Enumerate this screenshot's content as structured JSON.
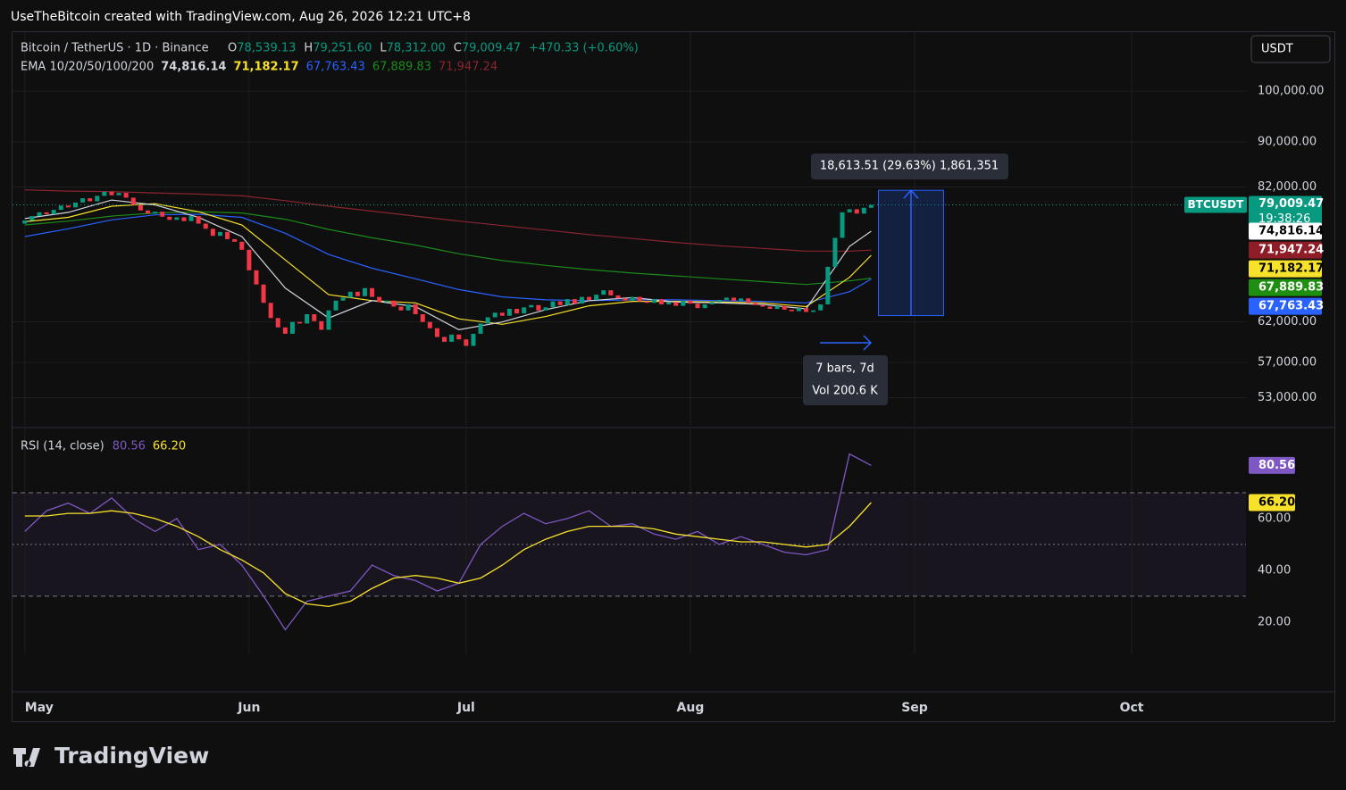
{
  "header": {
    "text": "UseTheBitcoin created with TradingView.com, Aug 26, 2026 12:21 UTC+8"
  },
  "footer": {
    "logo": "TradingView"
  },
  "chart_data": [
    {
      "type": "candlestick",
      "symbol": "Bitcoin / TetherUS · 1D · Binance",
      "ohlc_legend": [
        {
          "key": "O",
          "value": "78,539.13"
        },
        {
          "key": "H",
          "value": "79,251.60"
        },
        {
          "key": "L",
          "value": "78,312.00"
        },
        {
          "key": "C",
          "value": "79,009.47"
        }
      ],
      "change": "+470.33 (+0.60%)",
      "currency": "USDT",
      "indicator": "EMA 10/20/50/100/200",
      "log_scale": true,
      "grid": true,
      "up_color": "#089981",
      "down_color": "#f23645",
      "xlim": [
        -1.7,
        168.8
      ],
      "xticks": [
        {
          "value": 0,
          "label": "May"
        },
        {
          "value": 31,
          "label": "Jun"
        },
        {
          "value": 61,
          "label": "Jul"
        },
        {
          "value": 92,
          "label": "Aug"
        },
        {
          "value": 123,
          "label": "Sep"
        },
        {
          "value": 153,
          "label": "Oct"
        }
      ],
      "ylim": [
        50000,
        113000
      ],
      "yticks": [
        {
          "value": 53000,
          "label": "53,000.00"
        },
        {
          "value": 57000,
          "label": "57,000.00"
        },
        {
          "value": 62000,
          "label": "62,000.00"
        },
        {
          "value": 82000,
          "label": "82,000.00"
        },
        {
          "value": 90000,
          "label": "90,000.00"
        },
        {
          "value": 100000,
          "label": "100,000.00"
        }
      ],
      "x": [
        0,
        1,
        2,
        3,
        4,
        5,
        6,
        7,
        8,
        9,
        10,
        11,
        12,
        13,
        14,
        15,
        16,
        17,
        18,
        19,
        20,
        21,
        22,
        23,
        24,
        25,
        26,
        27,
        28,
        29,
        30,
        31,
        32,
        33,
        34,
        35,
        36,
        37,
        38,
        39,
        40,
        41,
        42,
        43,
        44,
        45,
        46,
        47,
        48,
        49,
        50,
        51,
        52,
        53,
        54,
        55,
        56,
        57,
        58,
        59,
        60,
        61,
        62,
        63,
        64,
        65,
        66,
        67,
        68,
        69,
        70,
        71,
        72,
        73,
        74,
        75,
        76,
        77,
        78,
        79,
        80,
        81,
        82,
        83,
        84,
        85,
        86,
        87,
        88,
        89,
        90,
        91,
        92,
        93,
        94,
        95,
        96,
        97,
        98,
        99,
        100,
        101,
        102,
        103,
        104,
        105,
        106,
        107,
        108,
        109,
        110,
        111,
        112,
        113,
        114,
        115,
        116,
        117
      ],
      "open": [
        76000,
        76500,
        77200,
        77800,
        77500,
        78200,
        78900,
        78600,
        79400,
        80100,
        79600,
        80500,
        81200,
        80600,
        81000,
        80200,
        79000,
        78100,
        77600,
        77900,
        77100,
        76600,
        77000,
        76400,
        77200,
        76000,
        75200,
        74100,
        74700,
        73600,
        73200,
        72000,
        69000,
        67000,
        64500,
        62500,
        61300,
        60500,
        62000,
        61800,
        63000,
        62100,
        61000,
        63500,
        64800,
        65200,
        66000,
        65400,
        66500,
        65300,
        64600,
        64800,
        64000,
        63500,
        64300,
        63000,
        62000,
        61200,
        60100,
        59500,
        60400,
        59800,
        59000,
        60500,
        61800,
        62600,
        63200,
        62800,
        63700,
        63100,
        63900,
        64200,
        63500,
        63900,
        64700,
        64200,
        65000,
        64400,
        65300,
        64900,
        65600,
        66200,
        65500,
        65100,
        64800,
        65300,
        64700,
        64500,
        65000,
        64300,
        64600,
        64100,
        64800,
        64400,
        63800,
        64300,
        64600,
        64900,
        65200,
        64800,
        65100,
        64500,
        64200,
        64000,
        63700,
        64100,
        63600,
        63400,
        63800,
        63300,
        63500,
        64300,
        69500,
        73800,
        77800,
        78300,
        77600,
        78539.13
      ],
      "close": [
        76500,
        77200,
        77800,
        77500,
        78200,
        78900,
        78600,
        79400,
        80100,
        79600,
        80500,
        81200,
        80600,
        81000,
        80200,
        79000,
        78100,
        77600,
        77900,
        77100,
        76600,
        77000,
        76400,
        77200,
        76000,
        75200,
        74100,
        74700,
        73600,
        73200,
        72000,
        69000,
        67000,
        64500,
        62500,
        61300,
        60500,
        62000,
        61800,
        63000,
        62100,
        61000,
        63500,
        64800,
        65200,
        66000,
        65400,
        66500,
        65300,
        64600,
        64800,
        64000,
        63500,
        64300,
        63000,
        62000,
        61200,
        60100,
        59500,
        60400,
        59800,
        59000,
        60500,
        61800,
        62600,
        63200,
        62800,
        63700,
        63100,
        63900,
        64200,
        63500,
        63900,
        64700,
        64200,
        65000,
        64400,
        65300,
        64900,
        65600,
        66200,
        65500,
        65100,
        64800,
        65300,
        64700,
        64500,
        65000,
        64300,
        64600,
        64100,
        64800,
        64400,
        63800,
        64300,
        64600,
        64900,
        65200,
        64800,
        65100,
        64500,
        64200,
        64000,
        63700,
        64100,
        63600,
        63400,
        63800,
        63300,
        63500,
        64300,
        69500,
        73800,
        77800,
        78300,
        77600,
        78539.13,
        79009.47
      ],
      "last_price": {
        "symbol": "BTCUSDT",
        "label": "79,009.47",
        "countdown": "19:38:26"
      },
      "series": [
        {
          "color": "#d1d4dc",
          "label_bg": "#ffffff",
          "label_fg": "#000000",
          "x": [
            0,
            6,
            12,
            18,
            24,
            30,
            36,
            42,
            48,
            54,
            60,
            66,
            72,
            78,
            84,
            90,
            96,
            102,
            108,
            114,
            117
          ],
          "values": [
            76800,
            77800,
            79800,
            79000,
            77000,
            74000,
            66500,
            62500,
            64800,
            64000,
            61000,
            62000,
            63600,
            64800,
            65200,
            64600,
            64500,
            64300,
            63700,
            72500,
            74816.14
          ],
          "last_label": "74,816.14"
        },
        {
          "color": "#f7e12a",
          "label_bg": "#f7e12a",
          "label_fg": "#000000",
          "x": [
            0,
            6,
            12,
            18,
            24,
            30,
            36,
            42,
            48,
            54,
            60,
            66,
            72,
            78,
            84,
            90,
            96,
            102,
            108,
            114,
            117
          ],
          "values": [
            76300,
            77000,
            78800,
            79200,
            77900,
            75800,
            70500,
            65600,
            64800,
            64500,
            62400,
            61700,
            62700,
            64100,
            64700,
            64700,
            64600,
            64500,
            64000,
            68000,
            71182.17
          ],
          "last_label": "71,182.17"
        },
        {
          "color": "#2962ff",
          "label_bg": "#2962ff",
          "label_fg": "#ffffff",
          "x": [
            0,
            6,
            12,
            18,
            24,
            30,
            36,
            42,
            48,
            54,
            60,
            66,
            72,
            78,
            84,
            90,
            96,
            102,
            108,
            114,
            117
          ],
          "values": [
            74000,
            75200,
            76600,
            77400,
            77500,
            77000,
            74500,
            71300,
            69300,
            67800,
            66300,
            65300,
            64900,
            64800,
            64900,
            64900,
            64800,
            64700,
            64500,
            66000,
            67763.43
          ],
          "last_label": "67,763.43"
        },
        {
          "color": "#1b8a1b",
          "label_bg": "#1f8f12",
          "label_fg": "#ffffff",
          "x": [
            0,
            6,
            12,
            18,
            24,
            30,
            36,
            42,
            48,
            54,
            60,
            66,
            72,
            78,
            84,
            90,
            96,
            102,
            108,
            114,
            117
          ],
          "values": [
            75800,
            76400,
            77200,
            77700,
            77900,
            77700,
            76700,
            75100,
            73800,
            72700,
            71400,
            70400,
            69700,
            69100,
            68600,
            68200,
            67800,
            67400,
            67000,
            67500,
            67889.83
          ],
          "last_label": "67,889.83"
        },
        {
          "color": "#8a2530",
          "label_bg": "#8f1d28",
          "label_fg": "#ffffff",
          "x": [
            0,
            6,
            12,
            18,
            24,
            30,
            36,
            42,
            48,
            54,
            60,
            66,
            72,
            78,
            84,
            90,
            96,
            102,
            108,
            114,
            117
          ],
          "values": [
            81500,
            81300,
            81200,
            81000,
            80800,
            80500,
            79700,
            78800,
            78000,
            77200,
            76400,
            75700,
            75000,
            74300,
            73700,
            73100,
            72600,
            72200,
            71800,
            71800,
            71947.24
          ],
          "last_label": "71,947.24"
        }
      ],
      "measure": {
        "x_start": 118,
        "x_end": 127,
        "low": 62820,
        "high": 81433,
        "text": "18,613.51 (29.63%) 1,861,351",
        "bars": "7 bars, 7d",
        "volume": "Vol 200.6 K"
      }
    },
    {
      "type": "line",
      "title": "RSI (14, close)",
      "xlim": [
        -1.7,
        168.8
      ],
      "ylim": [
        7.5,
        94.5
      ],
      "yticks": [
        {
          "value": 20,
          "label": "20.00"
        },
        {
          "value": 40,
          "label": "40.00"
        },
        {
          "value": 60,
          "label": "60.00"
        }
      ],
      "levels": [
        30,
        50,
        70
      ],
      "series": [
        {
          "color": "#7e57c2",
          "label_bg": "#7e57c2",
          "label_fg": "#ffffff",
          "x": [
            0,
            3,
            6,
            9,
            12,
            15,
            18,
            21,
            24,
            27,
            30,
            33,
            36,
            39,
            42,
            45,
            48,
            51,
            54,
            57,
            60,
            63,
            66,
            69,
            72,
            75,
            78,
            81,
            84,
            87,
            90,
            93,
            96,
            99,
            102,
            105,
            108,
            111,
            114,
            117
          ],
          "values": [
            55,
            63,
            66,
            62,
            68,
            60,
            55,
            60,
            48,
            50,
            42,
            30,
            17,
            28,
            30,
            32,
            42,
            38,
            36,
            32,
            35,
            50,
            57,
            62,
            58,
            60,
            63,
            57,
            58,
            54,
            52,
            55,
            50,
            53,
            50,
            47,
            46,
            48,
            85,
            80.56
          ],
          "last_label": "80.56"
        },
        {
          "color": "#f7e12a",
          "label_bg": "#f7e12a",
          "label_fg": "#000000",
          "x": [
            0,
            3,
            6,
            9,
            12,
            15,
            18,
            21,
            24,
            27,
            30,
            33,
            36,
            39,
            42,
            45,
            48,
            51,
            54,
            57,
            60,
            63,
            66,
            69,
            72,
            75,
            78,
            81,
            84,
            87,
            90,
            93,
            96,
            99,
            102,
            105,
            108,
            111,
            114,
            117
          ],
          "values": [
            61,
            61,
            62,
            62,
            63,
            62,
            60,
            57,
            53,
            48,
            44,
            39,
            31,
            27,
            26,
            28,
            33,
            37,
            38,
            37,
            35,
            37,
            42,
            48,
            52,
            55,
            57,
            57,
            57,
            56,
            54,
            53,
            52,
            51,
            51,
            50,
            49,
            50,
            57,
            66.2
          ],
          "last_label": "66.20"
        }
      ]
    }
  ]
}
